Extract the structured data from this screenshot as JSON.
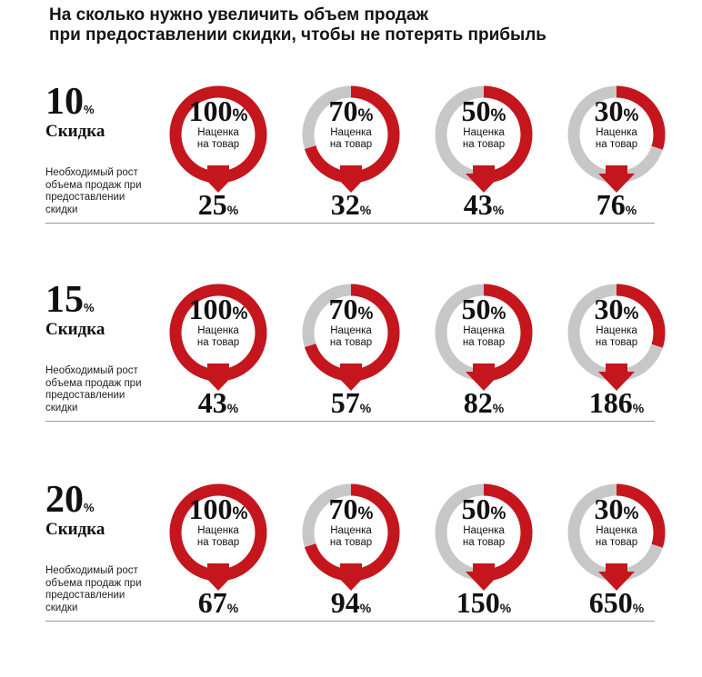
{
  "title": {
    "line1": "На сколько нужно увеличить объем продаж",
    "line2": "при предоставлении скидки, чтобы не потерять прибыль"
  },
  "colors": {
    "accent": "#c4161c",
    "ring_gray": "#c7c7c7",
    "text": "#111111"
  },
  "labels": {
    "discount": "Скидка",
    "percent_sign": "%",
    "markup_line1": "Наценка",
    "markup_line2": "на товар",
    "note_line1": "Необходимый рост",
    "note_line2": "объема продаж при",
    "note_line3": "предоставлении",
    "note_line4": "скидки"
  },
  "markups": [
    "100",
    "70",
    "50",
    "30"
  ],
  "markup_fraction": [
    1.0,
    0.7,
    0.5,
    0.3
  ],
  "blocks": [
    {
      "discount": "10",
      "results": [
        "25",
        "32",
        "43",
        "76"
      ]
    },
    {
      "discount": "15",
      "results": [
        "43",
        "57",
        "82",
        "186"
      ]
    },
    {
      "discount": "20",
      "results": [
        "67",
        "94",
        "150",
        "650"
      ]
    }
  ]
}
